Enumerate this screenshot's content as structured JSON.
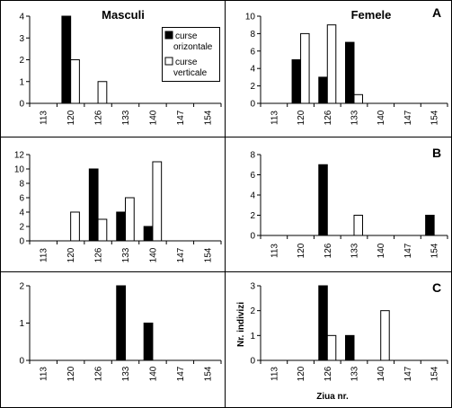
{
  "chart_data": [
    {
      "panel": "male-A",
      "type": "bar",
      "title": "Masculi",
      "letter": "",
      "categories": [
        "113",
        "120",
        "126",
        "133",
        "140",
        "147",
        "154"
      ],
      "ylim": [
        0,
        4
      ],
      "yticks": [
        0,
        1,
        2,
        3,
        4
      ],
      "legend": {
        "placement": "top-right",
        "series_labels": [
          "curse orizontale",
          "curse verticale"
        ]
      },
      "series": [
        {
          "name": "curse orizontale",
          "color": "#000000",
          "values": [
            0,
            4,
            0,
            0,
            0,
            0,
            0
          ]
        },
        {
          "name": "curse verticale",
          "color": "#ffffff",
          "values": [
            0,
            2,
            1,
            0,
            0,
            0,
            0
          ]
        }
      ]
    },
    {
      "panel": "female-A",
      "type": "bar",
      "title": "Femele",
      "letter": "A",
      "categories": [
        "113",
        "120",
        "126",
        "133",
        "140",
        "147",
        "154"
      ],
      "ylim": [
        0,
        10
      ],
      "yticks": [
        0,
        2,
        4,
        6,
        8,
        10
      ],
      "series": [
        {
          "color": "#000000",
          "values": [
            0,
            5,
            3,
            7,
            0,
            0,
            0
          ]
        },
        {
          "color": "#ffffff",
          "values": [
            0,
            8,
            9,
            1,
            0,
            0,
            0
          ]
        }
      ]
    },
    {
      "panel": "male-B",
      "type": "bar",
      "title": "",
      "letter": "",
      "categories": [
        "113",
        "120",
        "126",
        "133",
        "140",
        "147",
        "154"
      ],
      "ylim": [
        0,
        12
      ],
      "yticks": [
        0,
        2,
        4,
        6,
        8,
        10,
        12
      ],
      "series": [
        {
          "color": "#000000",
          "values": [
            0,
            0,
            10,
            4,
            2,
            0,
            0
          ]
        },
        {
          "color": "#ffffff",
          "values": [
            0,
            4,
            3,
            6,
            11,
            0,
            0
          ]
        }
      ]
    },
    {
      "panel": "female-B",
      "type": "bar",
      "title": "",
      "letter": "B",
      "categories": [
        "113",
        "120",
        "126",
        "133",
        "140",
        "147",
        "154"
      ],
      "ylim": [
        0,
        8
      ],
      "yticks": [
        0,
        2,
        4,
        6,
        8
      ],
      "series": [
        {
          "color": "#000000",
          "values": [
            0,
            0,
            7,
            0,
            0,
            0,
            2
          ]
        },
        {
          "color": "#ffffff",
          "values": [
            0,
            0,
            0,
            2,
            0,
            0,
            0
          ]
        }
      ]
    },
    {
      "panel": "male-C",
      "type": "bar",
      "title": "",
      "letter": "",
      "categories": [
        "113",
        "120",
        "126",
        "133",
        "140",
        "147",
        "154"
      ],
      "ylim": [
        0,
        2
      ],
      "yticks": [
        0,
        1,
        2
      ],
      "series": [
        {
          "color": "#000000",
          "values": [
            0,
            0,
            0,
            2,
            1,
            0,
            0
          ]
        },
        {
          "color": "#ffffff",
          "values": [
            0,
            0,
            0,
            0,
            0,
            0,
            0
          ]
        }
      ]
    },
    {
      "panel": "female-C",
      "type": "bar",
      "title": "",
      "letter": "C",
      "ylabel": "Nr. indivizi",
      "xlabel": "Ziua nr.",
      "categories": [
        "113",
        "120",
        "126",
        "133",
        "140",
        "147",
        "154"
      ],
      "ylim": [
        0,
        3
      ],
      "yticks": [
        0,
        1,
        2,
        3
      ],
      "series": [
        {
          "color": "#000000",
          "values": [
            0,
            0,
            3,
            1,
            0,
            0,
            0
          ]
        },
        {
          "color": "#ffffff",
          "values": [
            0,
            0,
            1,
            0,
            2,
            0,
            0
          ]
        }
      ]
    }
  ]
}
